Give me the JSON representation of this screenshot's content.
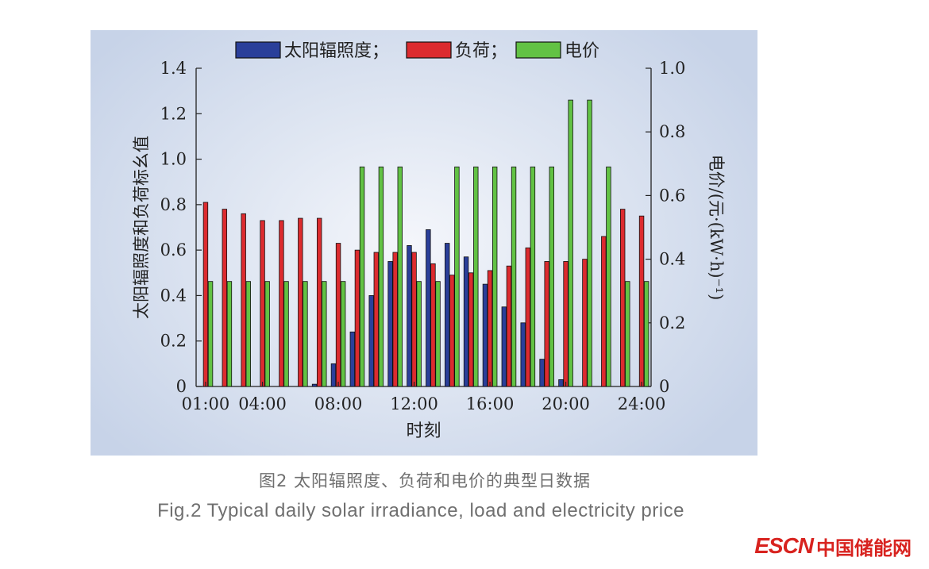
{
  "chart_data": {
    "type": "bar",
    "title": "",
    "x": [
      "1",
      "2",
      "3",
      "4",
      "5",
      "6",
      "7",
      "8",
      "9",
      "10",
      "11",
      "12",
      "13",
      "14",
      "15",
      "16",
      "17",
      "18",
      "19",
      "20",
      "21",
      "22",
      "23",
      "24"
    ],
    "xtick_labels": [
      "01:00",
      "04:00",
      "08:00",
      "12:00",
      "16:00",
      "20:00",
      "24:00"
    ],
    "xtick_hours": [
      1,
      4,
      8,
      12,
      16,
      20,
      24
    ],
    "xlabel": "时刻",
    "ylabel_left": "太阳辐照度和负荷标幺值",
    "ylabel_right": "电价/(元·(kW·h)⁻¹)",
    "ylim_left": [
      0,
      1.4
    ],
    "ylim_right": [
      0,
      1.0
    ],
    "yticks_left": [
      "0",
      "0.2",
      "0.4",
      "0.6",
      "0.8",
      "1.0",
      "1.2",
      "1.4"
    ],
    "yticks_right": [
      "0",
      "0.2",
      "0.4",
      "0.6",
      "0.8",
      "1.0"
    ],
    "series": [
      {
        "name": "太阳辐照度；",
        "axis": "left",
        "color": "#2a3f9a",
        "values": [
          0.0,
          0.0,
          0.0,
          0.0,
          0.0,
          0.0,
          0.01,
          0.1,
          0.24,
          0.4,
          0.55,
          0.62,
          0.69,
          0.63,
          0.57,
          0.45,
          0.35,
          0.28,
          0.12,
          0.03,
          0.0,
          0.0,
          0.0,
          0.0
        ]
      },
      {
        "name": "负荷；",
        "axis": "left",
        "color": "#dc2b2f",
        "values": [
          0.81,
          0.78,
          0.76,
          0.73,
          0.73,
          0.74,
          0.74,
          0.63,
          0.6,
          0.59,
          0.59,
          0.59,
          0.54,
          0.49,
          0.5,
          0.51,
          0.53,
          0.61,
          0.55,
          0.55,
          0.56,
          0.66,
          0.78,
          0.75
        ]
      },
      {
        "name": "电价",
        "axis": "right",
        "color": "#62c244",
        "values": [
          0.33,
          0.33,
          0.33,
          0.33,
          0.33,
          0.33,
          0.33,
          0.33,
          0.69,
          0.69,
          0.69,
          0.33,
          0.33,
          0.69,
          0.69,
          0.69,
          0.69,
          0.69,
          0.69,
          0.9,
          0.9,
          0.69,
          0.33,
          0.33
        ]
      }
    ]
  },
  "caption_cn": "图2  太阳辐照度、负荷和电价的典型日数据",
  "caption_en": "Fig.2  Typical daily solar irradiance, load and electricity price",
  "watermark": {
    "esc": "ESCN",
    "cn": "中国储能网"
  }
}
